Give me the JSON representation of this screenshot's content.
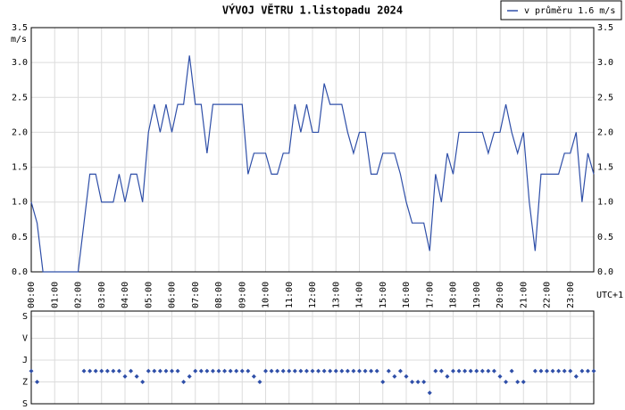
{
  "chart_data": [
    {
      "type": "line",
      "title": "VÝVOJ VĚTRU  1.listopadu 2024",
      "y_label": "m/s",
      "x_note": "UTC+1",
      "legend": "top-right",
      "grid": true,
      "xlim": [
        0,
        24
      ],
      "xticks": [
        {
          "value": 0,
          "label": "00:00"
        },
        {
          "value": 1,
          "label": "01:00"
        },
        {
          "value": 2,
          "label": "02:00"
        },
        {
          "value": 3,
          "label": "03:00"
        },
        {
          "value": 4,
          "label": "04:00"
        },
        {
          "value": 5,
          "label": "05:00"
        },
        {
          "value": 6,
          "label": "06:00"
        },
        {
          "value": 7,
          "label": "07:00"
        },
        {
          "value": 8,
          "label": "08:00"
        },
        {
          "value": 9,
          "label": "09:00"
        },
        {
          "value": 10,
          "label": "10:00"
        },
        {
          "value": 11,
          "label": "11:00"
        },
        {
          "value": 12,
          "label": "12:00"
        },
        {
          "value": 13,
          "label": "13:00"
        },
        {
          "value": 14,
          "label": "14:00"
        },
        {
          "value": 15,
          "label": "15:00"
        },
        {
          "value": 16,
          "label": "16:00"
        },
        {
          "value": 17,
          "label": "17:00"
        },
        {
          "value": 18,
          "label": "18:00"
        },
        {
          "value": 19,
          "label": "19:00"
        },
        {
          "value": 20,
          "label": "20:00"
        },
        {
          "value": 21,
          "label": "21:00"
        },
        {
          "value": 22,
          "label": "22:00"
        },
        {
          "value": 23,
          "label": "23:00"
        }
      ],
      "ylim": [
        0,
        3.5
      ],
      "yticks": [
        {
          "value": 0,
          "label": "0.0"
        },
        0.5,
        {
          "value": 1,
          "label": "1.0"
        },
        1.5,
        {
          "value": 2,
          "label": "2.0"
        },
        2.5,
        {
          "value": 3,
          "label": "3.0"
        },
        3.5
      ],
      "series": [
        {
          "name": "v průměru 1.6 m/s",
          "color": "#2f4fa8",
          "x": [
            0,
            0.25,
            0.5,
            2.0,
            2.5,
            2.75,
            3.0,
            3.5,
            3.75,
            4.0,
            4.25,
            4.5,
            4.75,
            5.0,
            5.25,
            5.5,
            5.75,
            6.0,
            6.25,
            6.5,
            6.75,
            7.0,
            7.25,
            7.5,
            7.75,
            9.0,
            9.25,
            9.5,
            10.0,
            10.25,
            10.5,
            10.75,
            11.0,
            11.25,
            11.5,
            11.75,
            12.0,
            12.25,
            12.5,
            12.75,
            13.25,
            13.5,
            13.75,
            14.0,
            14.25,
            14.5,
            14.75,
            15.0,
            15.5,
            15.75,
            16.0,
            16.25,
            16.75,
            17.0,
            17.25,
            17.5,
            17.75,
            18.0,
            18.25,
            19.25,
            19.5,
            19.75,
            20.0,
            20.25,
            20.5,
            20.75,
            21.0,
            21.25,
            21.5,
            21.75,
            22.5,
            22.75,
            23.0,
            23.25,
            23.5,
            23.75,
            24.0
          ],
          "values": [
            1.0,
            0.7,
            0,
            0,
            1.4,
            1.4,
            1.0,
            1.0,
            1.4,
            1.0,
            1.4,
            1.4,
            1.0,
            2.0,
            2.4,
            2.0,
            2.4,
            2.0,
            2.4,
            2.4,
            3.1,
            2.4,
            2.4,
            1.7,
            2.4,
            2.4,
            1.4,
            1.7,
            1.7,
            1.4,
            1.4,
            1.7,
            1.7,
            2.4,
            2.0,
            2.4,
            2.0,
            2.0,
            2.7,
            2.4,
            2.4,
            2.0,
            1.7,
            2.0,
            2.0,
            1.4,
            1.4,
            1.7,
            1.7,
            1.4,
            1.0,
            0.7,
            0.7,
            0.3,
            1.4,
            1.0,
            1.7,
            1.4,
            2.0,
            2.0,
            1.7,
            2.0,
            2.0,
            2.4,
            2.0,
            1.7,
            2.0,
            1.0,
            0.3,
            1.4,
            1.4,
            1.7,
            1.7,
            2.0,
            1.0,
            1.7,
            1.4
          ]
        }
      ]
    },
    {
      "type": "scatter",
      "grid": true,
      "xlim": [
        0,
        24
      ],
      "xticks": [
        0,
        1,
        2,
        3,
        4,
        5,
        6,
        7,
        8,
        9,
        10,
        11,
        12,
        13,
        14,
        15,
        16,
        17,
        18,
        19,
        20,
        21,
        22,
        23
      ],
      "ylim": [
        0,
        360
      ],
      "yticks": [
        {
          "value": 0,
          "label": "S"
        },
        {
          "value": 90,
          "label": "V"
        },
        {
          "value": 180,
          "label": "J"
        },
        {
          "value": 270,
          "label": "Z"
        },
        {
          "value": 360,
          "label": "S"
        }
      ],
      "series": [
        {
          "color": "#2f4fa8",
          "x": [
            0,
            0.25,
            2.25,
            2.5,
            2.75,
            3.0,
            3.25,
            3.5,
            3.75,
            4.0,
            4.25,
            4.5,
            4.75,
            5.0,
            5.25,
            5.5,
            5.75,
            6.0,
            6.25,
            6.5,
            6.75,
            7.0,
            7.25,
            7.5,
            7.75,
            8.0,
            8.25,
            8.5,
            8.75,
            9.0,
            9.25,
            9.5,
            9.75,
            10.0,
            10.25,
            10.5,
            10.75,
            11.0,
            11.25,
            11.5,
            11.75,
            12.0,
            12.25,
            12.5,
            12.75,
            13.0,
            13.25,
            13.5,
            13.75,
            14.0,
            14.25,
            14.5,
            14.75,
            15.0,
            15.25,
            15.5,
            15.75,
            16.0,
            16.25,
            16.5,
            16.75,
            17.0,
            17.25,
            17.5,
            17.75,
            18.0,
            18.25,
            18.5,
            18.75,
            19.0,
            19.25,
            19.5,
            19.75,
            20.0,
            20.25,
            20.5,
            20.75,
            21.0,
            21.5,
            21.75,
            22.0,
            22.25,
            22.5,
            22.75,
            23.0,
            23.25,
            23.5,
            23.75,
            24.0
          ],
          "values": [
            225,
            270,
            225,
            225,
            225,
            225,
            225,
            225,
            225,
            247.5,
            225,
            247.5,
            270,
            225,
            225,
            225,
            225,
            225,
            225,
            270,
            247.5,
            225,
            225,
            225,
            225,
            225,
            225,
            225,
            225,
            225,
            225,
            247.5,
            270,
            225,
            225,
            225,
            225,
            225,
            225,
            225,
            225,
            225,
            225,
            225,
            225,
            225,
            225,
            225,
            225,
            225,
            225,
            225,
            225,
            270,
            225,
            247.5,
            225,
            247.5,
            270,
            270,
            270,
            315,
            225,
            225,
            247.5,
            225,
            225,
            225,
            225,
            225,
            225,
            225,
            225,
            247.5,
            270,
            225,
            270,
            270,
            225,
            225,
            225,
            225,
            225,
            225,
            225,
            247.5,
            225,
            225,
            225
          ]
        }
      ]
    }
  ]
}
